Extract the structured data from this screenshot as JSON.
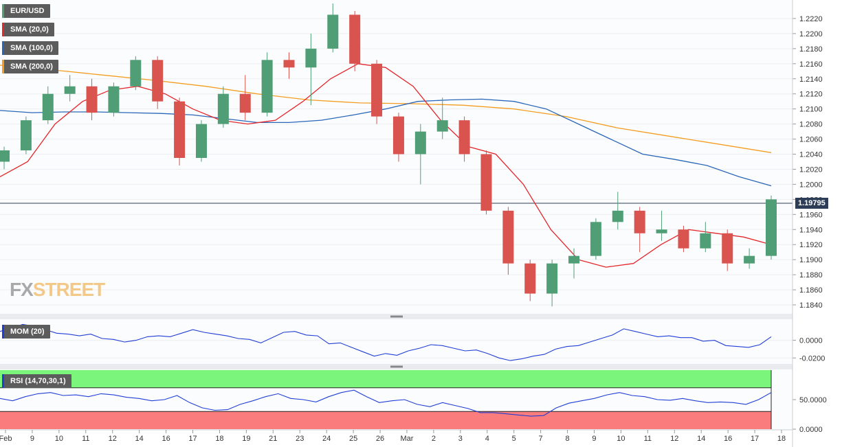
{
  "symbol": "EUR/USD",
  "indicators": {
    "sma20": "SMA (20,0)",
    "sma100": "SMA (100,0)",
    "sma200": "SMA (200,0)",
    "mom": "MOM (20)",
    "rsi": "RSI (14,70,30,1)"
  },
  "current_price_label": "1.19795",
  "logo": {
    "left": "FX",
    "right": "STREET"
  },
  "colors": {
    "up": "#4f9e75",
    "down": "#d9534f",
    "sma20": "#e5262b",
    "sma100": "#2966b8",
    "sma200": "#f39c1f",
    "mom_line": "#1f3dd6",
    "rsi_line": "#1f3dd6",
    "rsi_overbought": "#7cf57c",
    "rsi_oversold": "#fb7c7c",
    "price_line": "#2d3d57"
  },
  "chart_data": [
    {
      "type": "candlestick",
      "title": "EUR/USD",
      "timeframe": "4h",
      "ylim": [
        1.183,
        1.224
      ],
      "y_ticks": [
        "1.1840",
        "1.1860",
        "1.1880",
        "1.1900",
        "1.1920",
        "1.1940",
        "1.1960",
        "1.1980",
        "1.2000",
        "1.2020",
        "1.2040",
        "1.2060",
        "1.2080",
        "1.2100",
        "1.2120",
        "1.2140",
        "1.2160",
        "1.2180",
        "1.2200",
        "1.2220"
      ],
      "x_labels": [
        "Feb",
        "9",
        "10",
        "11",
        "12",
        "14",
        "16",
        "17",
        "18",
        "19",
        "21",
        "23",
        "24",
        "25",
        "26",
        "Mar",
        "2",
        "3",
        "4",
        "5",
        "7",
        "8",
        "9",
        "10",
        "11",
        "12",
        "14",
        "16",
        "17",
        "18"
      ],
      "current_price": 1.19795,
      "series": [
        {
          "name": "SMA (20,0)",
          "values": [
            1.201,
            1.203,
            1.208,
            1.211,
            1.2125,
            1.213,
            1.212,
            1.21,
            1.2085,
            1.208,
            1.2085,
            1.211,
            1.214,
            1.216,
            1.2155,
            1.213,
            1.2085,
            1.205,
            1.204,
            1.2,
            1.194,
            1.19,
            1.189,
            1.1895,
            1.192,
            1.194,
            1.1935,
            1.193,
            1.192
          ]
        },
        {
          "name": "SMA (100,0)",
          "values": [
            1.2098,
            1.2095,
            1.2096,
            1.2096,
            1.2095,
            1.2094,
            1.2092,
            1.2087,
            1.2082,
            1.2082,
            1.2085,
            1.2092,
            1.21,
            1.211,
            1.2112,
            1.2113,
            1.211,
            1.21,
            1.208,
            1.206,
            1.204,
            1.2033,
            1.2025,
            1.201,
            1.1998
          ]
        },
        {
          "name": "SMA (200,0)",
          "values": [
            1.2158,
            1.2152,
            1.2145,
            1.2138,
            1.213,
            1.212,
            1.2112,
            1.2108,
            1.2107,
            1.2105,
            1.21,
            1.209,
            1.2075,
            1.2064,
            1.2053,
            1.2042
          ]
        }
      ],
      "candles_ohlc": [
        [
          1.203,
          1.205,
          1.202,
          1.2045
        ],
        [
          1.2045,
          1.209,
          1.204,
          1.2085
        ],
        [
          1.2085,
          1.213,
          1.208,
          1.212
        ],
        [
          1.212,
          1.2145,
          1.211,
          1.213
        ],
        [
          1.213,
          1.214,
          1.2085,
          1.2095
        ],
        [
          1.2095,
          1.2135,
          1.209,
          1.213
        ],
        [
          1.213,
          1.217,
          1.2125,
          1.2165
        ],
        [
          1.2165,
          1.217,
          1.21,
          1.211
        ],
        [
          1.211,
          1.2115,
          1.2025,
          1.2035
        ],
        [
          1.2035,
          1.2085,
          1.203,
          1.208
        ],
        [
          1.208,
          1.213,
          1.2075,
          1.212
        ],
        [
          1.212,
          1.2145,
          1.2085,
          1.2095
        ],
        [
          1.2095,
          1.2175,
          1.209,
          1.2165
        ],
        [
          1.2165,
          1.2175,
          1.214,
          1.2155
        ],
        [
          1.2155,
          1.22,
          1.2105,
          1.218
        ],
        [
          1.218,
          1.224,
          1.2175,
          1.2225
        ],
        [
          1.2225,
          1.223,
          1.215,
          1.216
        ],
        [
          1.216,
          1.2165,
          1.208,
          1.209
        ],
        [
          1.209,
          1.2095,
          1.203,
          1.204
        ],
        [
          1.204,
          1.208,
          1.2,
          1.207
        ],
        [
          1.207,
          1.2115,
          1.206,
          1.2085
        ],
        [
          1.2085,
          1.209,
          1.203,
          1.204
        ],
        [
          1.204,
          1.2045,
          1.196,
          1.1965
        ],
        [
          1.1965,
          1.197,
          1.188,
          1.1895
        ],
        [
          1.1895,
          1.19,
          1.1845,
          1.1855
        ],
        [
          1.1855,
          1.19,
          1.1838,
          1.1895
        ],
        [
          1.1895,
          1.1915,
          1.1875,
          1.1905
        ],
        [
          1.1905,
          1.1955,
          1.19,
          1.195
        ],
        [
          1.195,
          1.199,
          1.194,
          1.1965
        ],
        [
          1.1965,
          1.197,
          1.191,
          1.1935
        ],
        [
          1.1935,
          1.1965,
          1.1925,
          1.194
        ],
        [
          1.194,
          1.1945,
          1.191,
          1.1915
        ],
        [
          1.1915,
          1.195,
          1.191,
          1.1935
        ],
        [
          1.1935,
          1.194,
          1.1885,
          1.1895
        ],
        [
          1.1895,
          1.1915,
          1.1888,
          1.1905
        ],
        [
          1.1905,
          1.1985,
          1.19,
          1.198
        ]
      ]
    },
    {
      "type": "line",
      "title": "MOM (20)",
      "ylim": [
        -0.026,
        0.023
      ],
      "y_ticks": [
        "0.0000",
        "-0.0200"
      ],
      "series": [
        {
          "name": "MOM (20)",
          "values": [
            0.01,
            0.014,
            0.018,
            0.016,
            0.012,
            0.008,
            0.007,
            0.005,
            0.007,
            0.002,
            0.001,
            -0.002,
            0.0,
            0.004,
            0.005,
            0.004,
            0.008,
            0.012,
            0.009,
            0.007,
            0.005,
            0.002,
            0.001,
            -0.003,
            0.003,
            0.009,
            0.01,
            0.006,
            0.005,
            -0.004,
            -0.003,
            -0.008,
            -0.013,
            -0.018,
            -0.015,
            -0.017,
            -0.012,
            -0.009,
            -0.005,
            -0.006,
            -0.009,
            -0.012,
            -0.011,
            -0.015,
            -0.02,
            -0.023,
            -0.021,
            -0.018,
            -0.016,
            -0.01,
            -0.007,
            -0.006,
            -0.002,
            0.002,
            0.006,
            0.013,
            0.01,
            0.007,
            0.004,
            0.005,
            0.003,
            0.003,
            -0.001,
            0.0,
            -0.006,
            -0.007,
            -0.008,
            -0.005,
            0.004
          ]
        }
      ]
    },
    {
      "type": "line",
      "title": "RSI (14,70,30,1)",
      "ylim": [
        0,
        100
      ],
      "y_ticks": [
        "50.0000",
        "0.0000"
      ],
      "levels": {
        "overbought": 70,
        "oversold": 30
      },
      "series": [
        {
          "name": "RSI (14,70,30,1)",
          "values": [
            52,
            48,
            55,
            60,
            62,
            57,
            58,
            55,
            60,
            58,
            54,
            52,
            48,
            50,
            57,
            45,
            36,
            32,
            33,
            42,
            48,
            55,
            60,
            52,
            50,
            46,
            55,
            62,
            66,
            55,
            45,
            48,
            50,
            42,
            38,
            45,
            40,
            35,
            28,
            28,
            26,
            24,
            22,
            23,
            36,
            44,
            48,
            52,
            58,
            62,
            57,
            55,
            50,
            49,
            52,
            48,
            45,
            46,
            45,
            42,
            50,
            62
          ]
        }
      ]
    }
  ]
}
